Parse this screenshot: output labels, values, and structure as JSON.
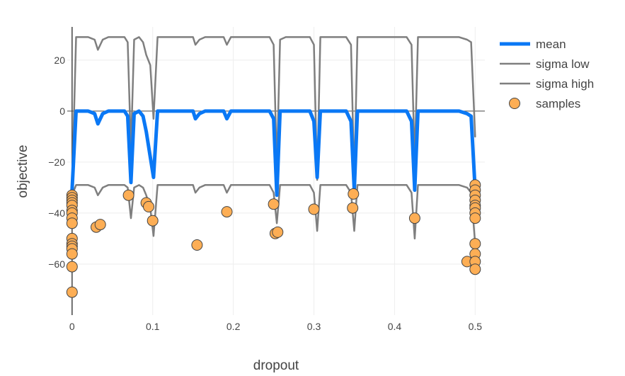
{
  "chart_data": {
    "type": "line",
    "xlabel": "dropout",
    "ylabel": "objective",
    "xlim": [
      -0.006,
      0.512
    ],
    "ylim": [
      -80,
      33
    ],
    "x_ticks": [
      0,
      0.1,
      0.2,
      0.3,
      0.4,
      0.5
    ],
    "x_tick_labels": [
      "0",
      "0.1",
      "0.2",
      "0.3",
      "0.4",
      "0.5"
    ],
    "y_ticks": [
      20,
      0,
      -20,
      -40,
      -60
    ],
    "y_tick_labels": [
      "20",
      "0",
      "−20",
      "−40",
      "−60"
    ],
    "grid": true,
    "legend_position": "top-right",
    "series": [
      {
        "name": "mean",
        "kind": "line",
        "color": "#0a78f5",
        "width": 5,
        "x": [
          0,
          0.005,
          0.01,
          0.02,
          0.028,
          0.032,
          0.038,
          0.045,
          0.055,
          0.065,
          0.069,
          0.073,
          0.077,
          0.083,
          0.088,
          0.092,
          0.097,
          0.101,
          0.106,
          0.113,
          0.125,
          0.14,
          0.15,
          0.153,
          0.158,
          0.165,
          0.18,
          0.188,
          0.192,
          0.197,
          0.205,
          0.22,
          0.235,
          0.245,
          0.25,
          0.254,
          0.258,
          0.265,
          0.28,
          0.295,
          0.3,
          0.304,
          0.308,
          0.315,
          0.33,
          0.34,
          0.346,
          0.35,
          0.354,
          0.365,
          0.38,
          0.4,
          0.415,
          0.421,
          0.425,
          0.429,
          0.44,
          0.46,
          0.48,
          0.49,
          0.495,
          0.5
        ],
        "y": [
          -31,
          0,
          0,
          0,
          -1,
          -5,
          -1,
          0,
          0,
          0,
          -2,
          -28,
          -1,
          0,
          -2,
          -8,
          -18,
          -26,
          0,
          0,
          0,
          0,
          0,
          -3,
          -1,
          0,
          0,
          0,
          -3,
          0,
          0,
          0,
          0,
          0,
          -3,
          -33,
          0,
          0,
          0,
          0,
          -4,
          -26,
          0,
          0,
          0,
          0,
          -4,
          -31,
          0,
          0,
          0,
          0,
          0,
          -4,
          -31,
          0,
          0,
          0,
          0,
          -1,
          -2,
          -31
        ]
      },
      {
        "name": "sigma low",
        "kind": "line",
        "color": "#7f7f7f",
        "width": 2.5,
        "x": [
          0,
          0.005,
          0.01,
          0.02,
          0.028,
          0.032,
          0.038,
          0.045,
          0.055,
          0.065,
          0.069,
          0.073,
          0.077,
          0.083,
          0.088,
          0.092,
          0.097,
          0.101,
          0.106,
          0.113,
          0.125,
          0.14,
          0.15,
          0.153,
          0.158,
          0.165,
          0.18,
          0.188,
          0.192,
          0.197,
          0.205,
          0.22,
          0.235,
          0.245,
          0.25,
          0.254,
          0.258,
          0.265,
          0.28,
          0.295,
          0.3,
          0.304,
          0.308,
          0.315,
          0.33,
          0.34,
          0.346,
          0.35,
          0.354,
          0.365,
          0.38,
          0.4,
          0.415,
          0.421,
          0.425,
          0.429,
          0.44,
          0.46,
          0.48,
          0.49,
          0.495,
          0.5
        ],
        "y": [
          -30,
          29,
          29,
          29,
          28,
          24,
          28,
          29,
          29,
          29,
          27,
          -15,
          28,
          29,
          27,
          22,
          18,
          -3,
          29,
          29,
          29,
          29,
          29,
          26,
          28,
          29,
          29,
          29,
          26,
          29,
          29,
          29,
          29,
          29,
          26,
          -22,
          28,
          29,
          29,
          29,
          26,
          -27,
          29,
          29,
          29,
          29,
          26,
          -27,
          29,
          29,
          29,
          29,
          29,
          26,
          -20,
          29,
          29,
          29,
          29,
          28,
          27,
          -10
        ]
      },
      {
        "name": "sigma high",
        "kind": "line",
        "color": "#7f7f7f",
        "width": 2.5,
        "x": [
          0,
          0.005,
          0.01,
          0.02,
          0.028,
          0.032,
          0.038,
          0.045,
          0.055,
          0.065,
          0.069,
          0.073,
          0.077,
          0.083,
          0.088,
          0.092,
          0.097,
          0.101,
          0.106,
          0.113,
          0.125,
          0.14,
          0.15,
          0.153,
          0.158,
          0.165,
          0.18,
          0.188,
          0.192,
          0.197,
          0.205,
          0.22,
          0.235,
          0.245,
          0.25,
          0.254,
          0.258,
          0.265,
          0.28,
          0.295,
          0.3,
          0.304,
          0.308,
          0.315,
          0.33,
          0.34,
          0.346,
          0.35,
          0.354,
          0.365,
          0.38,
          0.4,
          0.415,
          0.421,
          0.425,
          0.429,
          0.44,
          0.46,
          0.48,
          0.49,
          0.495,
          0.5
        ],
        "y": [
          -33,
          -29,
          -29,
          -29,
          -30,
          -33,
          -30,
          -29,
          -29,
          -29,
          -30,
          -42,
          -30,
          -29,
          -30,
          -33,
          -38,
          -49,
          -29,
          -29,
          -29,
          -29,
          -29,
          -32,
          -30,
          -29,
          -29,
          -29,
          -32,
          -29,
          -29,
          -29,
          -29,
          -29,
          -32,
          -44,
          -29,
          -29,
          -29,
          -29,
          -32,
          -47,
          -29,
          -29,
          -29,
          -29,
          -32,
          -47,
          -29,
          -29,
          -29,
          -29,
          -29,
          -32,
          -50,
          -29,
          -29,
          -29,
          -29,
          -30,
          -32,
          -52
        ]
      }
    ],
    "samples": {
      "name": "samples",
      "kind": "markers",
      "color": "#fdae55",
      "edge_color": "#444444",
      "x": [
        0,
        0,
        0,
        0,
        0,
        0,
        0,
        0,
        0,
        0,
        0,
        0,
        0,
        0,
        0,
        0,
        0.03,
        0.035,
        0.07,
        0.092,
        0.095,
        0.1,
        0.155,
        0.192,
        0.25,
        0.252,
        0.255,
        0.3,
        0.348,
        0.349,
        0.425,
        0.49,
        0.5,
        0.5,
        0.5,
        0.5,
        0.5,
        0.5,
        0.5,
        0.5,
        0.5,
        0.5,
        0.5,
        0.5
      ],
      "y": [
        -33,
        -34,
        -35,
        -36,
        -37,
        -39,
        -40,
        -42,
        -44,
        -50,
        -52,
        -53,
        -54,
        -56,
        -61,
        -71,
        -45.5,
        -44.5,
        -33,
        -36,
        -37.5,
        -43,
        -52.5,
        -39.5,
        -36.5,
        -48,
        -47.5,
        -38.5,
        -38,
        -32.5,
        -42,
        -59,
        -29,
        -31,
        -33,
        -35,
        -37,
        -38,
        -40,
        -42,
        -52,
        -56,
        -59,
        -62
      ]
    }
  }
}
